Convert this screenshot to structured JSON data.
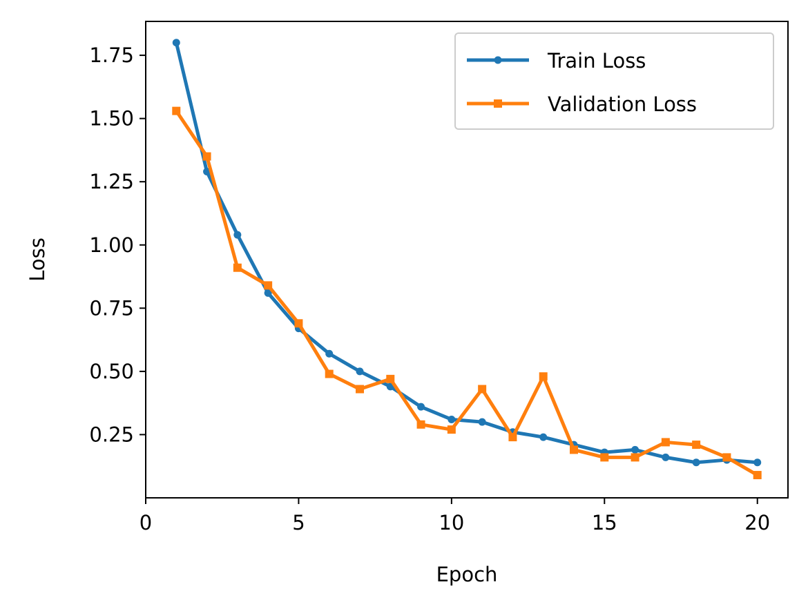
{
  "chart_data": {
    "type": "line",
    "title": "",
    "xlabel": "Epoch",
    "ylabel": "Loss",
    "xlim": [
      0,
      21
    ],
    "ylim": [
      0.0,
      1.884
    ],
    "xticks": [
      0,
      5,
      10,
      15,
      20
    ],
    "xtick_labels": [
      "0",
      "5",
      "10",
      "15",
      "20"
    ],
    "yticks": [
      0.25,
      0.5,
      0.75,
      1.0,
      1.25,
      1.5,
      1.75
    ],
    "ytick_labels": [
      "0.25",
      "0.50",
      "0.75",
      "1.00",
      "1.25",
      "1.50",
      "1.75"
    ],
    "grid": false,
    "legend_position": "top-right",
    "x": [
      1,
      2,
      3,
      4,
      5,
      6,
      7,
      8,
      9,
      10,
      11,
      12,
      13,
      14,
      15,
      16,
      17,
      18,
      19,
      20
    ],
    "series": [
      {
        "name": "Train Loss",
        "color": "#1f77b4",
        "marker": "circle",
        "values": [
          1.8,
          1.29,
          1.04,
          0.81,
          0.67,
          0.57,
          0.5,
          0.44,
          0.36,
          0.31,
          0.3,
          0.26,
          0.24,
          0.21,
          0.18,
          0.19,
          0.16,
          0.14,
          0.15,
          0.14
        ]
      },
      {
        "name": "Validation Loss",
        "color": "#ff7f0e",
        "marker": "square",
        "values": [
          1.53,
          1.35,
          0.91,
          0.84,
          0.69,
          0.49,
          0.43,
          0.47,
          0.29,
          0.27,
          0.43,
          0.24,
          0.48,
          0.19,
          0.16,
          0.16,
          0.22,
          0.21,
          0.16,
          0.09
        ]
      }
    ]
  }
}
